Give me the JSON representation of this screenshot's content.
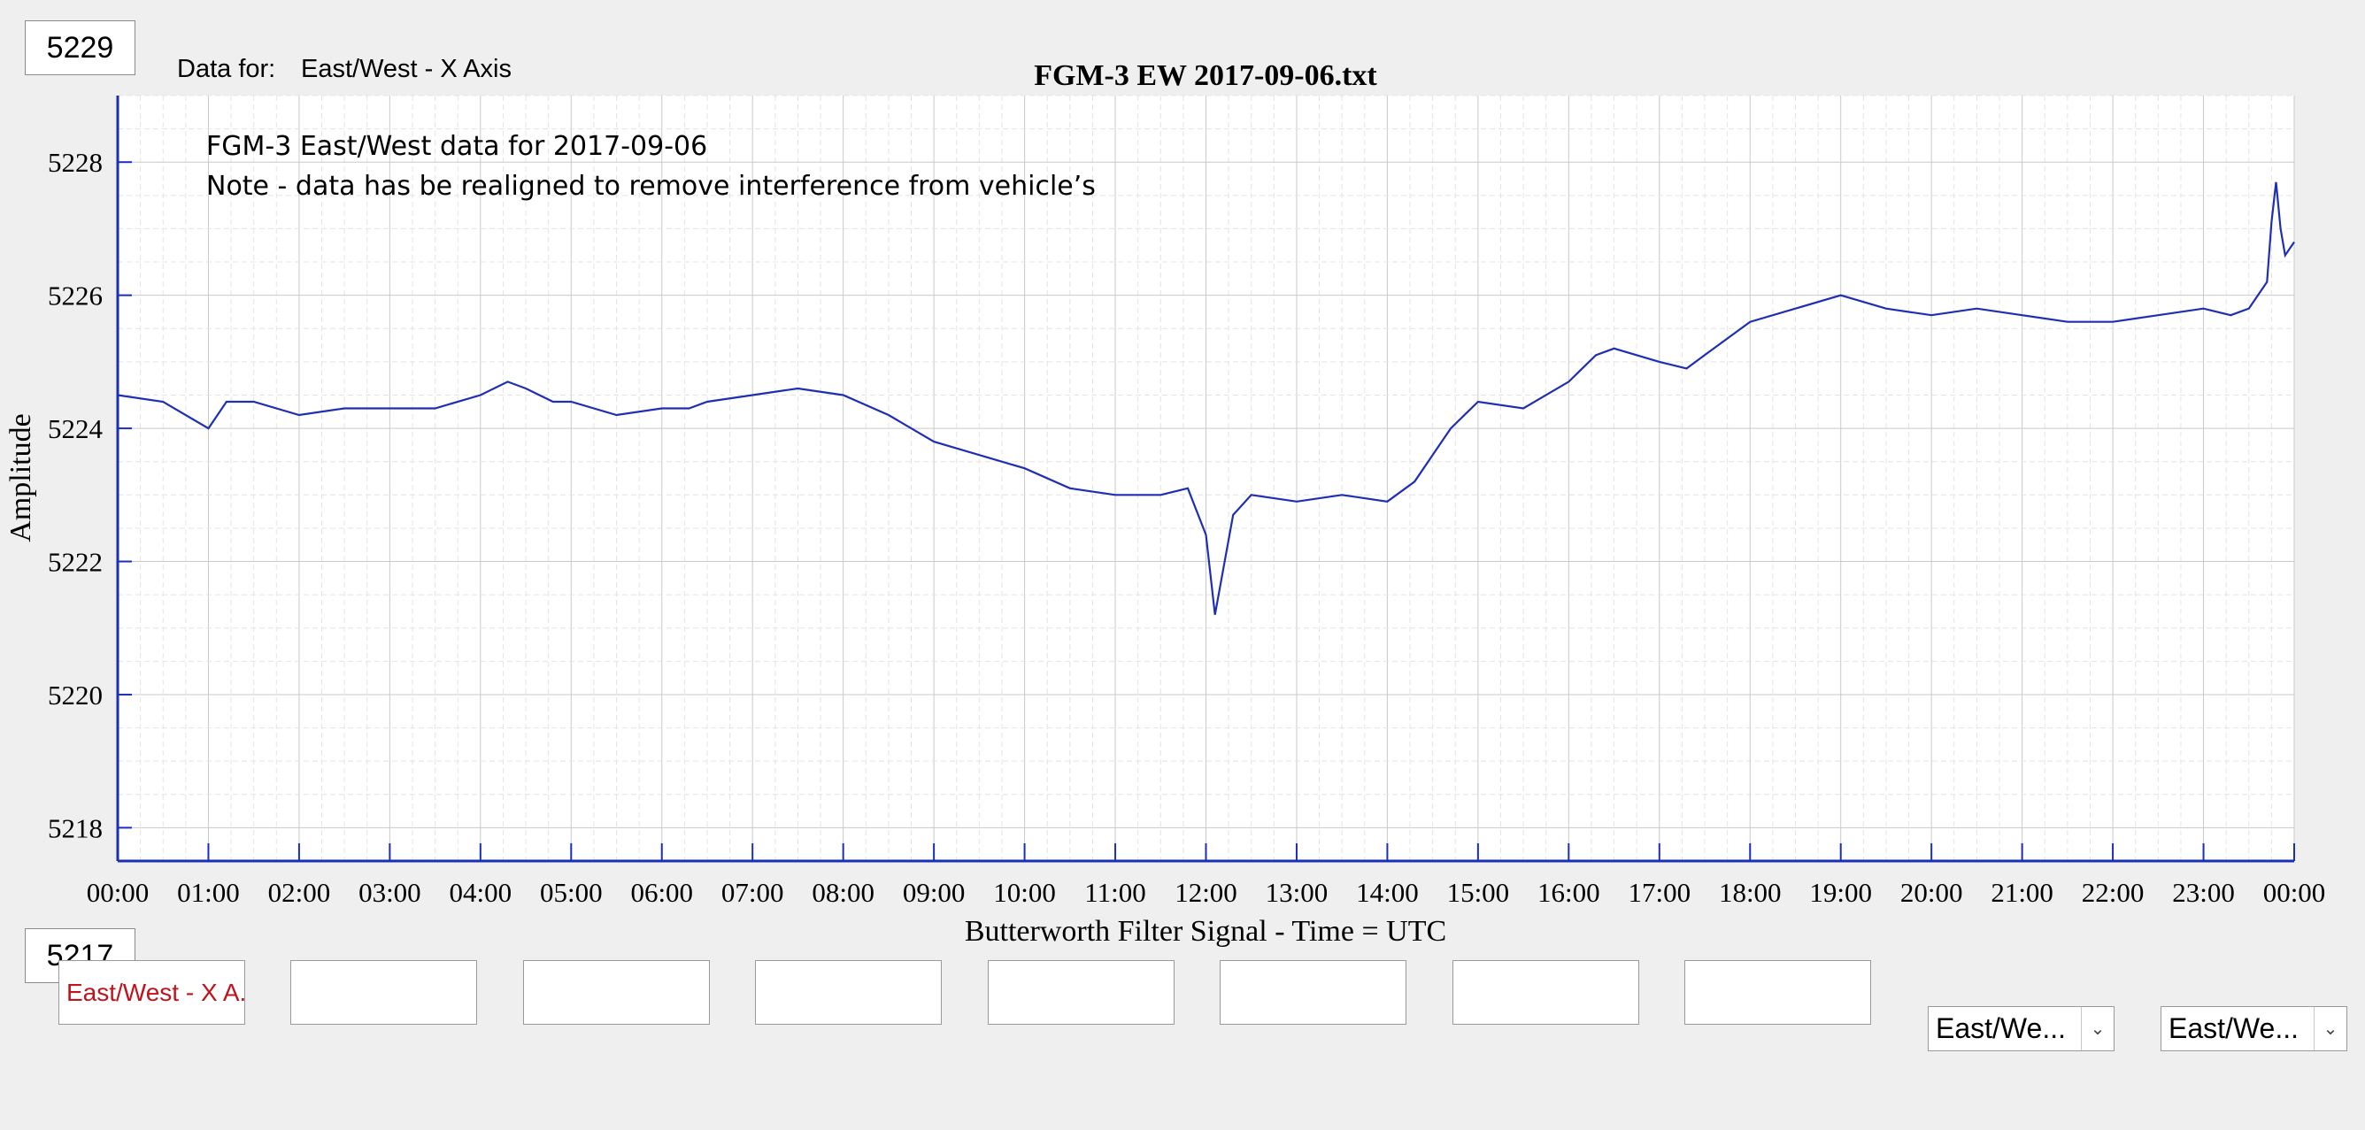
{
  "controls": {
    "y_max_box": "5229",
    "y_min_box": "5217",
    "data_for_label": "Data for:",
    "data_for_value": "East/West - X Axis",
    "legend_boxes": [
      "East/West - X A...",
      "",
      "",
      "",
      "",
      "",
      "",
      ""
    ],
    "dropdown_1": "East/We...",
    "dropdown_2": "East/We..."
  },
  "chart_data": {
    "type": "line",
    "title": "FGM-3 EW 2017-09-06.txt",
    "xlabel": "Butterworth Filter Signal - Time = UTC",
    "ylabel": "Amplitude",
    "ylim": [
      5217.5,
      5229
    ],
    "xlim": [
      0,
      24
    ],
    "grid": true,
    "x_ticks": [
      "00:00",
      "01:00",
      "02:00",
      "03:00",
      "04:00",
      "05:00",
      "06:00",
      "07:00",
      "08:00",
      "09:00",
      "10:00",
      "11:00",
      "12:00",
      "13:00",
      "14:00",
      "15:00",
      "16:00",
      "17:00",
      "18:00",
      "19:00",
      "20:00",
      "21:00",
      "22:00",
      "23:00",
      "00:00"
    ],
    "y_ticks": [
      5218,
      5220,
      5222,
      5224,
      5226,
      5228
    ],
    "annotations": [
      "FGM-3 East/West data for 2017-09-06",
      "Note - data has be realigned to remove interference from vehicle’s"
    ],
    "series": [
      {
        "color": "#1f2fb4",
        "x_hours": [
          0.0,
          0.5,
          1.0,
          1.2,
          1.5,
          2.0,
          2.5,
          3.0,
          3.5,
          4.0,
          4.3,
          4.5,
          4.8,
          5.0,
          5.5,
          6.0,
          6.3,
          6.5,
          7.0,
          7.5,
          8.0,
          8.5,
          9.0,
          9.5,
          10.0,
          10.5,
          11.0,
          11.5,
          11.8,
          12.0,
          12.1,
          12.3,
          12.5,
          13.0,
          13.5,
          14.0,
          14.3,
          14.5,
          14.7,
          15.0,
          15.5,
          16.0,
          16.3,
          16.5,
          17.0,
          17.3,
          17.5,
          18.0,
          18.5,
          19.0,
          19.5,
          20.0,
          20.5,
          21.0,
          21.5,
          22.0,
          22.5,
          23.0,
          23.3,
          23.5,
          23.7,
          23.75,
          23.8,
          23.85,
          23.9,
          24.0
        ],
        "amplitude": [
          5224.5,
          5224.4,
          5224.0,
          5224.4,
          5224.4,
          5224.2,
          5224.3,
          5224.3,
          5224.3,
          5224.5,
          5224.7,
          5224.6,
          5224.4,
          5224.4,
          5224.2,
          5224.3,
          5224.3,
          5224.4,
          5224.5,
          5224.6,
          5224.5,
          5224.2,
          5223.8,
          5223.6,
          5223.4,
          5223.1,
          5223.0,
          5223.0,
          5223.1,
          5222.4,
          5221.2,
          5222.7,
          5223.0,
          5222.9,
          5223.0,
          5222.9,
          5223.2,
          5223.6,
          5224.0,
          5224.4,
          5224.3,
          5224.7,
          5225.1,
          5225.2,
          5225.0,
          5224.9,
          5225.1,
          5225.6,
          5225.8,
          5226.0,
          5225.8,
          5225.7,
          5225.8,
          5225.7,
          5225.6,
          5225.6,
          5225.7,
          5225.8,
          5225.7,
          5225.8,
          5226.2,
          5227.1,
          5227.7,
          5227.0,
          5226.6,
          5226.8
        ]
      }
    ]
  }
}
